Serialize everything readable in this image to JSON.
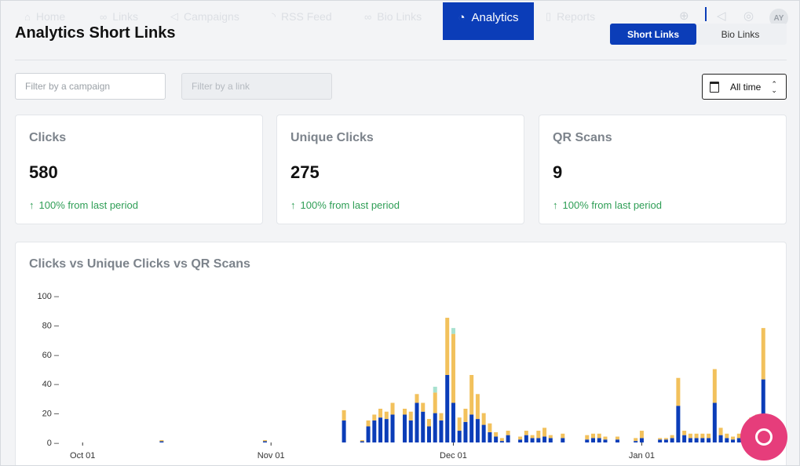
{
  "nav": {
    "items": [
      {
        "label": "Home",
        "icon": "home-icon",
        "glyph": "⌂"
      },
      {
        "label": "Links",
        "icon": "link-icon",
        "glyph": "🔗"
      },
      {
        "label": "Campaigns",
        "icon": "megaphone-icon",
        "glyph": "📢"
      },
      {
        "label": "RSS Feed",
        "icon": "rss-icon",
        "glyph": "◔"
      },
      {
        "label": "Bio Links",
        "icon": "bio-link-icon",
        "glyph": "∞"
      }
    ],
    "active": {
      "label": "Analytics",
      "icon": "pie-chart-icon",
      "glyph": "◔"
    },
    "after": {
      "label": "Reports",
      "icon": "document-icon",
      "glyph": "▯"
    },
    "avatar": "AY"
  },
  "page": {
    "title": "Analytics Short Links"
  },
  "toggle": {
    "short_links": "Short Links",
    "bio_links": "Bio Links"
  },
  "filters": {
    "campaign_placeholder": "Filter by a campaign",
    "link_placeholder": "Filter by a link",
    "date_range": "All time"
  },
  "stats": [
    {
      "label": "Clicks",
      "value": "580",
      "trend": "100% from last period"
    },
    {
      "label": "Unique Clicks",
      "value": "275",
      "trend": "100% from last period"
    },
    {
      "label": "QR Scans",
      "value": "9",
      "trend": "100% from last period"
    }
  ],
  "colors": {
    "accent": "#0b3db8",
    "unique": "#0b3db8",
    "clicks": "#f2c15c",
    "qr": "#a7e1cf",
    "trend": "#2f9e56",
    "help": "#e63d7b"
  },
  "chart_data": {
    "type": "bar",
    "stacked": true,
    "title": "Clicks vs Unique Clicks vs QR Scans",
    "xlabel": "",
    "ylabel": "",
    "ylim": [
      0,
      100
    ],
    "yticks": [
      0,
      20,
      40,
      60,
      80,
      100
    ],
    "xticks": [
      "Oct 01",
      "Nov 01",
      "Dec 01",
      "Jan 01"
    ],
    "xrange": [
      "2023-09-28",
      "2024-01-22"
    ],
    "series": [
      {
        "key": "unique",
        "values": [
          [
            "2023-10-14",
            0.5,
            0.5,
            0
          ],
          [
            "2023-10-31",
            0.5,
            0.5,
            0
          ],
          [
            "2023-11-13",
            15,
            7,
            0
          ],
          [
            "2023-11-16",
            0.5,
            0.5,
            0
          ],
          [
            "2023-11-17",
            11,
            4,
            0
          ],
          [
            "2023-11-18",
            15,
            4,
            0
          ],
          [
            "2023-11-19",
            17,
            6,
            0
          ],
          [
            "2023-11-20",
            16,
            5,
            0
          ],
          [
            "2023-11-21",
            19,
            8,
            0
          ],
          [
            "2023-11-23",
            19,
            4,
            0
          ],
          [
            "2023-11-24",
            15,
            6,
            0
          ],
          [
            "2023-11-25",
            27,
            6,
            0
          ],
          [
            "2023-11-26",
            21,
            6,
            0
          ],
          [
            "2023-11-27",
            11,
            5,
            0
          ],
          [
            "2023-11-28",
            20,
            14,
            4
          ],
          [
            "2023-11-29",
            15,
            5,
            0
          ],
          [
            "2023-11-30",
            46,
            39,
            0
          ],
          [
            "2023-12-01",
            27,
            47,
            4
          ],
          [
            "2023-12-02",
            8,
            9,
            0
          ],
          [
            "2023-12-03",
            14,
            9,
            0
          ],
          [
            "2023-12-04",
            19,
            27,
            0
          ],
          [
            "2023-12-05",
            16,
            17,
            0
          ],
          [
            "2023-12-06",
            12,
            8,
            0
          ],
          [
            "2023-12-07",
            7,
            6,
            0
          ],
          [
            "2023-12-08",
            4,
            3,
            0
          ],
          [
            "2023-12-09",
            1,
            2,
            0
          ],
          [
            "2023-12-10",
            5,
            3,
            0
          ],
          [
            "2023-12-12",
            2,
            2,
            0
          ],
          [
            "2023-12-13",
            5,
            3,
            0
          ],
          [
            "2023-12-14",
            3,
            2,
            0
          ],
          [
            "2023-12-15",
            3,
            5,
            0
          ],
          [
            "2023-12-16",
            4,
            6,
            0
          ],
          [
            "2023-12-17",
            3,
            2,
            0
          ],
          [
            "2023-12-19",
            3,
            3,
            0
          ],
          [
            "2023-12-23",
            2,
            3,
            0
          ],
          [
            "2023-12-24",
            3,
            3,
            0
          ],
          [
            "2023-12-25",
            3,
            3,
            0
          ],
          [
            "2023-12-26",
            2,
            2,
            0
          ],
          [
            "2023-12-28",
            2,
            2,
            0
          ],
          [
            "2023-12-31",
            1,
            2,
            0
          ],
          [
            "2024-01-01",
            3,
            5,
            0
          ],
          [
            "2024-01-04",
            2,
            1,
            0
          ],
          [
            "2024-01-05",
            2,
            1,
            0
          ],
          [
            "2024-01-06",
            3,
            2,
            0
          ],
          [
            "2024-01-07",
            25,
            19,
            0
          ],
          [
            "2024-01-08",
            5,
            3,
            0
          ],
          [
            "2024-01-09",
            3,
            3,
            0
          ],
          [
            "2024-01-10",
            3,
            3,
            0
          ],
          [
            "2024-01-11",
            3,
            3,
            0
          ],
          [
            "2024-01-12",
            3,
            3,
            0
          ],
          [
            "2024-01-13",
            27,
            23,
            0
          ],
          [
            "2024-01-14",
            5,
            5,
            0
          ],
          [
            "2024-01-15",
            3,
            3,
            0
          ],
          [
            "2024-01-16",
            2,
            2,
            0
          ],
          [
            "2024-01-17",
            3,
            3,
            0
          ],
          [
            "2024-01-18",
            2,
            2,
            0
          ],
          [
            "2024-01-19",
            12,
            5,
            0
          ],
          [
            "2024-01-20",
            5,
            14,
            0
          ],
          [
            "2024-01-21",
            43,
            35,
            0
          ]
        ]
      }
    ],
    "series_labels": {
      "unique": "Unique Clicks",
      "clicks": "Clicks",
      "qr": "QR Scans"
    }
  }
}
